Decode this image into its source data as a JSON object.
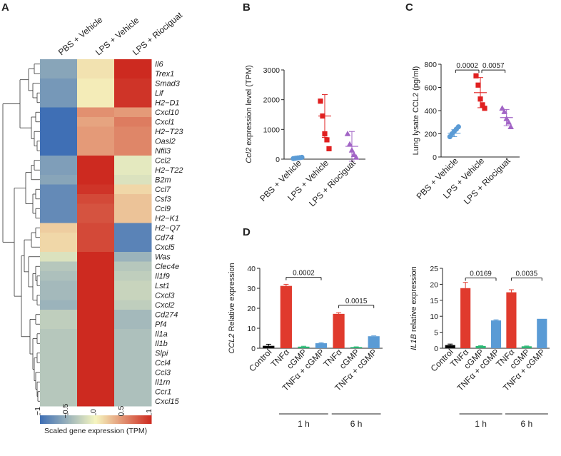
{
  "panels": {
    "a": {
      "letter": "A",
      "conditions": [
        "PBS + Vehicle",
        "LPS + Vehicle",
        "LPS + Riociguat"
      ],
      "genes": [
        "Il6",
        "Trex1",
        "Smad3",
        "Lif",
        "H2−D1",
        "Cxcl10",
        "Cxcl1",
        "H2−T23",
        "Oasl2",
        "Nfil3",
        "Ccl2",
        "H2−T22",
        "B2m",
        "Ccl7",
        "Csf3",
        "Ccl9",
        "H2−K1",
        "H2−Q7",
        "Cd74",
        "Cxcl5",
        "Was",
        "Clec4e",
        "Il1f9",
        "Lst1",
        "Cxcl3",
        "Cxcl2",
        "Cd274",
        "Pf4",
        "Il1a",
        "Il1b",
        "Slpi",
        "Ccl4",
        "Ccl3",
        "Il1rn",
        "Ccr1",
        "Cxcl15"
      ],
      "colorbar_ticks": [
        "−1",
        "−0.5",
        "0",
        "0.5",
        "1"
      ],
      "colorbar_label": "Scaled gene expression (TPM)"
    },
    "b": {
      "letter": "B"
    },
    "c": {
      "letter": "C"
    },
    "d": {
      "letter": "D"
    }
  },
  "colors": {
    "pbs": "#5b9bd5",
    "lps": "#e02020",
    "rio": "#a265c6",
    "ctrl": "#000000",
    "tnf": "#e03a2d",
    "cgmp": "#2bb673",
    "combo": "#5a9bd5",
    "heat_low": "#3f6fb5",
    "heat_mid": "#f6f6c0",
    "heat_high": "#cd2a20"
  },
  "chart_data": [
    {
      "id": "heatmap",
      "type": "heatmap",
      "title": "",
      "columns": [
        "PBS + Vehicle",
        "LPS + Vehicle",
        "LPS + Riociguat"
      ],
      "rows": [
        "Il6",
        "Trex1",
        "Smad3",
        "Lif",
        "H2−D1",
        "Cxcl10",
        "Cxcl1",
        "H2−T23",
        "Oasl2",
        "Nfil3",
        "Ccl2",
        "H2−T22",
        "B2m",
        "Ccl7",
        "Csf3",
        "Ccl9",
        "H2−K1",
        "H2−Q7",
        "Cd74",
        "Cxcl5",
        "Was",
        "Clec4e",
        "Il1f9",
        "Lst1",
        "Cxcl3",
        "Cxcl2",
        "Cd274",
        "Pf4",
        "Il1a",
        "Il1b",
        "Slpi",
        "Ccl4",
        "Ccl3",
        "Il1rn",
        "Ccr1",
        "Cxcl15"
      ],
      "values": [
        [
          -0.6,
          0.1,
          1.0
        ],
        [
          -0.6,
          0.1,
          1.0
        ],
        [
          -0.7,
          0.05,
          0.95
        ],
        [
          -0.7,
          0.05,
          0.95
        ],
        [
          -0.7,
          0.05,
          0.95
        ],
        [
          -1.0,
          0.5,
          0.45
        ],
        [
          -1.0,
          0.4,
          0.6
        ],
        [
          -1.0,
          0.45,
          0.55
        ],
        [
          -1.0,
          0.45,
          0.55
        ],
        [
          -1.0,
          0.45,
          0.55
        ],
        [
          -0.65,
          1.0,
          -0.1
        ],
        [
          -0.65,
          1.0,
          -0.1
        ],
        [
          -0.6,
          1.0,
          -0.15
        ],
        [
          -0.8,
          0.95,
          0.15
        ],
        [
          -0.8,
          0.85,
          0.25
        ],
        [
          -0.8,
          0.8,
          0.25
        ],
        [
          -0.8,
          0.8,
          0.25
        ],
        [
          0.2,
          0.85,
          -0.85
        ],
        [
          0.15,
          0.85,
          -0.85
        ],
        [
          0.15,
          0.85,
          -0.85
        ],
        [
          -0.15,
          1.0,
          -0.5
        ],
        [
          -0.35,
          1.0,
          -0.35
        ],
        [
          -0.4,
          1.0,
          -0.3
        ],
        [
          -0.45,
          1.0,
          -0.25
        ],
        [
          -0.45,
          1.0,
          -0.25
        ],
        [
          -0.5,
          1.0,
          -0.3
        ],
        [
          -0.3,
          1.0,
          -0.45
        ],
        [
          -0.3,
          1.0,
          -0.45
        ],
        [
          -0.35,
          1.0,
          -0.4
        ],
        [
          -0.35,
          1.0,
          -0.4
        ],
        [
          -0.35,
          1.0,
          -0.4
        ],
        [
          -0.35,
          1.0,
          -0.4
        ],
        [
          -0.35,
          1.0,
          -0.4
        ],
        [
          -0.35,
          1.0,
          -0.4
        ],
        [
          -0.35,
          1.0,
          -0.4
        ],
        [
          -0.35,
          1.0,
          -0.4
        ]
      ],
      "colorbar": {
        "min": -1,
        "max": 1,
        "ticks": [
          -1,
          -0.5,
          0,
          0.5,
          1
        ],
        "label": "Scaled gene expression (TPM)"
      }
    },
    {
      "id": "ccl2_tpm",
      "type": "scatter",
      "title": "",
      "xlabel": "",
      "ylabel_italic": "Ccl2",
      "ylabel_rest": " expression level (TPM)",
      "ylim": [
        0,
        3000
      ],
      "yticks": [
        0,
        1000,
        2000,
        3000
      ],
      "categories": [
        "PBS + Vehicle",
        "LPS + Vehicle",
        "LPS + Riociguat"
      ],
      "markers": [
        "circle",
        "square",
        "triangle"
      ],
      "points": [
        [
          20,
          30,
          40,
          50,
          60
        ],
        [
          1950,
          1450,
          850,
          650,
          350
        ],
        [
          850,
          500,
          300,
          150,
          60
        ]
      ],
      "mean": [
        35,
        1450,
        430
      ],
      "error": [
        10,
        720,
        500
      ]
    },
    {
      "id": "ccl2_lysate",
      "type": "scatter",
      "title": "",
      "xlabel": "",
      "ylabel": "Lung lysate CCL2 (pg/ml)",
      "ylim": [
        0,
        800
      ],
      "yticks": [
        0,
        200,
        400,
        600,
        800
      ],
      "categories": [
        "PBS + Vehicle",
        "LPS + Vehicle",
        "LPS + Riociguat"
      ],
      "markers": [
        "circle",
        "square",
        "triangle"
      ],
      "points": [
        [
          175,
          200,
          220,
          240,
          260
        ],
        [
          700,
          620,
          500,
          450,
          420
        ],
        [
          420,
          390,
          330,
          300,
          260
        ]
      ],
      "mean": [
        205,
        555,
        340
      ],
      "error": [
        30,
        130,
        70
      ],
      "comparisons": [
        {
          "from": 0,
          "to": 1,
          "label": "0.0002",
          "y": 750
        },
        {
          "from": 1,
          "to": 2,
          "label": "0.0057",
          "y": 750
        }
      ]
    },
    {
      "id": "ccl2_relative",
      "type": "bar",
      "title": "",
      "ylabel_italic": "CCL2",
      "ylabel_rest": " Relative expression",
      "ylim": [
        0,
        40
      ],
      "yticks": [
        0,
        10,
        20,
        30,
        40
      ],
      "categories": [
        "Control",
        "TNFα",
        "cGMP",
        "TNFα + cGMP",
        "TNFα",
        "cGMP",
        "TNFα + cGMP"
      ],
      "values": [
        1.2,
        31.2,
        0.8,
        2.5,
        17.2,
        0.6,
        6.0
      ],
      "errors": [
        0.8,
        0.8,
        0.2,
        0.3,
        0.6,
        0.1,
        0.2
      ],
      "color_keys": [
        "ctrl",
        "tnf",
        "cgmp",
        "combo",
        "tnf",
        "cgmp",
        "combo"
      ],
      "comparisons": [
        {
          "from": 1,
          "to": 3,
          "label": "0.0002",
          "y": 35.5
        },
        {
          "from": 4,
          "to": 6,
          "label": "0.0015",
          "y": 21.5
        }
      ],
      "groups": [
        {
          "from": 1,
          "to": 3,
          "label": "1 h"
        },
        {
          "from": 4,
          "to": 6,
          "label": "6 h"
        }
      ]
    },
    {
      "id": "il1b_relative",
      "type": "bar",
      "title": "",
      "ylabel_italic": "IL1B",
      "ylabel_rest": " relative expression",
      "ylim": [
        0,
        25
      ],
      "yticks": [
        0,
        5,
        10,
        15,
        20,
        25
      ],
      "categories": [
        "Control",
        "TNFα",
        "cGMP",
        "TNFα + cGMP",
        "TNFα",
        "cGMP",
        "TNFα + cGMP"
      ],
      "values": [
        1.0,
        18.8,
        0.7,
        8.7,
        17.5,
        0.6,
        9.2
      ],
      "errors": [
        0.3,
        1.8,
        0.1,
        0.2,
        0.8,
        0.1,
        0.0
      ],
      "color_keys": [
        "ctrl",
        "tnf",
        "cgmp",
        "combo",
        "tnf",
        "cgmp",
        "combo"
      ],
      "comparisons": [
        {
          "from": 1,
          "to": 3,
          "label": "0.0169",
          "y": 22
        },
        {
          "from": 4,
          "to": 6,
          "label": "0.0035",
          "y": 22
        }
      ],
      "groups": [
        {
          "from": 1,
          "to": 3,
          "label": "1 h"
        },
        {
          "from": 4,
          "to": 6,
          "label": "6 h"
        }
      ]
    }
  ]
}
